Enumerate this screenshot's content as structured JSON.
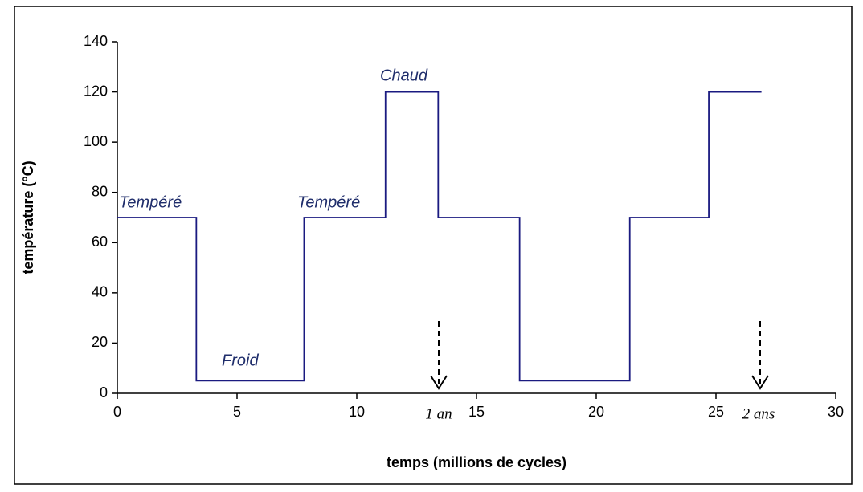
{
  "chart_data": {
    "type": "line",
    "x": [
      0,
      3.3,
      3.3,
      7.8,
      7.8,
      11.2,
      11.2,
      13.4,
      13.4,
      16.8,
      16.8,
      21.4,
      21.4,
      24.7,
      24.7,
      26.9
    ],
    "series": [
      {
        "color": "#1a1a80",
        "values": [
          70,
          70,
          5,
          5,
          70,
          70,
          120,
          120,
          70,
          70,
          5,
          5,
          70,
          70,
          120,
          120
        ]
      }
    ],
    "xlabel": "temps (millions de cycles)",
    "ylabel": "température (°C)",
    "xlim": [
      0,
      30
    ],
    "xticks": [
      0,
      5,
      10,
      15,
      20,
      25,
      30
    ],
    "ylim": [
      0,
      140
    ],
    "yticks": [
      0,
      20,
      40,
      60,
      80,
      100,
      120,
      140
    ],
    "grid": false,
    "annotations": [
      "Tempéré",
      "Froid",
      "Tempéré",
      "Chaud",
      "1 an",
      "2 ans"
    ]
  }
}
